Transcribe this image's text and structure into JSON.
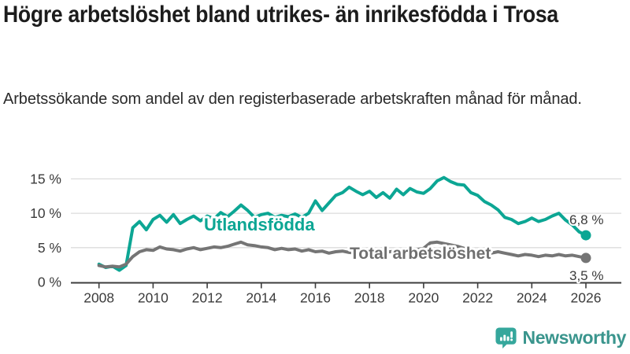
{
  "title": "Högre arbetslöshet bland utrikes- än inrikesfödda i Trosa",
  "subtitle": "Arbetssökande som andel av den registerbaserade arbetskraften månad för månad.",
  "branding": {
    "logo_text": "Newsworthy",
    "logo_color": "#3a958d",
    "icon_color": "#35a79c"
  },
  "chart_data": {
    "type": "line",
    "title": "Högre arbetslöshet bland utrikes- än inrikesfödda i Trosa",
    "subtitle": "Arbetssökande som andel av den registerbaserade arbetskraften månad för månad.",
    "xlabel": "",
    "ylabel": "",
    "unit": "%",
    "grid": true,
    "xlim": [
      2007.8,
      2026.6
    ],
    "ylim": [
      0,
      16
    ],
    "x_ticks": [
      2008,
      2010,
      2012,
      2014,
      2016,
      2018,
      2020,
      2022,
      2024,
      2026
    ],
    "y_tick_values": [
      0,
      5,
      10,
      15
    ],
    "y_tick_labels": [
      "0 %",
      "5 %",
      "10 %",
      "15 %"
    ],
    "y_gridlines": [
      5,
      10,
      15
    ],
    "x_start": 2008,
    "x_step": 0.25,
    "legend_position": "inline-labels",
    "series": [
      {
        "name": "Utlandsfödda",
        "color": "#0ca694",
        "label_color": "#0ca694",
        "end_value": 6.8,
        "end_label": "6,8 %",
        "values": [
          2.6,
          2.1,
          2.3,
          1.7,
          2.4,
          7.9,
          8.8,
          7.6,
          9.1,
          9.7,
          8.7,
          9.8,
          8.5,
          9.1,
          9.6,
          8.9,
          9.6,
          9.2,
          10.1,
          9.5,
          10.3,
          11.2,
          10.4,
          9.4,
          9.8,
          10.0,
          9.4,
          9.7,
          9.5,
          9.9,
          9.4,
          10.0,
          11.8,
          10.4,
          11.5,
          12.6,
          13.0,
          13.8,
          13.2,
          12.7,
          13.2,
          12.3,
          13.0,
          12.2,
          13.5,
          12.7,
          13.6,
          13.1,
          12.9,
          13.6,
          14.7,
          15.2,
          14.6,
          14.2,
          14.1,
          13.0,
          12.6,
          11.7,
          11.2,
          10.5,
          9.4,
          9.1,
          8.5,
          8.8,
          9.3,
          8.8,
          9.1,
          9.6,
          10.0,
          9.0,
          8.3,
          7.3,
          6.8
        ]
      },
      {
        "name": "Total arbetslöshet",
        "color": "#757575",
        "label_color": "#6f6f6f",
        "end_value": 3.5,
        "end_label": "3,5 %",
        "values": [
          2.4,
          2.2,
          2.3,
          2.2,
          2.6,
          3.7,
          4.4,
          4.7,
          4.6,
          5.1,
          4.8,
          4.7,
          4.5,
          4.8,
          5.0,
          4.7,
          4.9,
          5.1,
          5.0,
          5.2,
          5.5,
          5.8,
          5.4,
          5.3,
          5.1,
          5.0,
          4.7,
          4.9,
          4.7,
          4.8,
          4.5,
          4.7,
          4.4,
          4.5,
          4.2,
          4.4,
          4.5,
          4.3,
          4.2,
          4.4,
          4.3,
          4.5,
          4.3,
          4.4,
          4.5,
          4.4,
          4.6,
          4.7,
          4.9,
          5.7,
          5.8,
          5.6,
          5.4,
          5.2,
          4.9,
          4.6,
          4.5,
          4.3,
          4.2,
          4.4,
          4.2,
          4.0,
          3.8,
          4.0,
          3.9,
          3.7,
          3.9,
          3.8,
          4.0,
          3.8,
          3.9,
          3.7,
          3.5
        ]
      }
    ]
  }
}
